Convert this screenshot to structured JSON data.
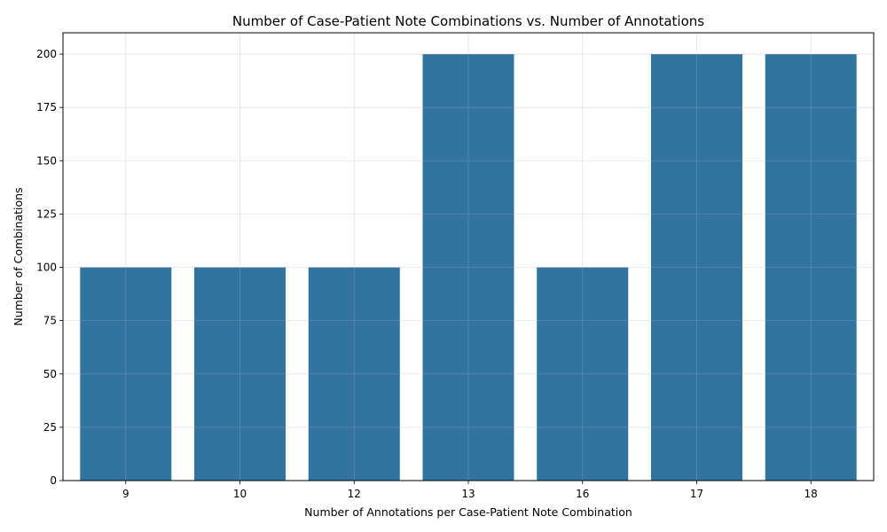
{
  "chart_data": {
    "type": "bar",
    "title": "Number of Case-Patient Note Combinations vs. Number of Annotations",
    "xlabel": "Number of Annotations per Case-Patient Note Combination",
    "ylabel": "Number of Combinations",
    "categories": [
      "9",
      "10",
      "12",
      "13",
      "16",
      "17",
      "18"
    ],
    "values": [
      100,
      100,
      100,
      200,
      100,
      200,
      200
    ],
    "ylim": [
      0,
      210
    ],
    "yticks": [
      0,
      25,
      50,
      75,
      100,
      125,
      150,
      175,
      200
    ],
    "grid": true,
    "bar_color": "#3274a1"
  }
}
